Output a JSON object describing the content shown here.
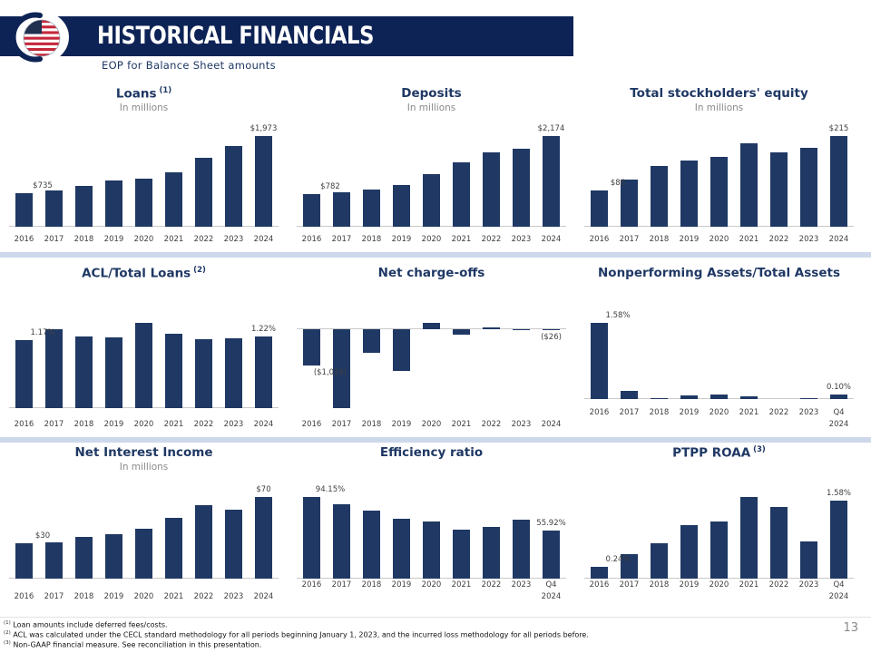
{
  "header": {
    "title": "HISTORICAL FINANCIALS",
    "subtitle": "EOP for Balance Sheet amounts",
    "logo_icon": "us-flag-globe-logo"
  },
  "page_number": "13",
  "footnotes": [
    {
      "sup": "(1)",
      "text": "Loan amounts include deferred fees/costs."
    },
    {
      "sup": "(2)",
      "text": "ACL was calculated under the CECL standard methodology for all periods beginning January 1, 2023, and the incurred loss methodology for all periods before."
    },
    {
      "sup": "(3)",
      "text": "Non-GAAP financial measure. See reconciliation in this presentation."
    }
  ],
  "colors": {
    "band_navy": "#0E2355",
    "bar_navy": "#1F3864",
    "title_navy": "#1F3864",
    "separator_blue": "#CDD8EB",
    "subtitle_gray": "#8a8a8a",
    "label_gray": "#3f3f3f"
  },
  "chart_data": [
    {
      "type": "bar",
      "title": "Loans",
      "sup": "(1)",
      "subtitle": "In millions",
      "categories": [
        "2016",
        "2017",
        "2018",
        "2019",
        "2020",
        "2021",
        "2022",
        "2023",
        "2024"
      ],
      "values": [
        735,
        780,
        890,
        1000,
        1050,
        1175,
        1500,
        1760,
        1973
      ],
      "ylim": [
        0,
        2150
      ],
      "grid": false,
      "labels": [
        {
          "index": 0,
          "text": "$735",
          "pos": "above"
        },
        {
          "index": 8,
          "text": "$1,973",
          "pos": "above"
        }
      ]
    },
    {
      "type": "bar",
      "title": "Deposits",
      "sup": "",
      "subtitle": "In millions",
      "categories": [
        "2016",
        "2017",
        "2018",
        "2019",
        "2020",
        "2021",
        "2022",
        "2023",
        "2024"
      ],
      "values": [
        782,
        830,
        900,
        1000,
        1260,
        1545,
        1775,
        1880,
        2174
      ],
      "ylim": [
        0,
        2350
      ],
      "grid": false,
      "labels": [
        {
          "index": 0,
          "text": "$782",
          "pos": "above"
        },
        {
          "index": 8,
          "text": "$2,174",
          "pos": "above"
        }
      ]
    },
    {
      "type": "bar",
      "title": "Total stockholders' equity",
      "sup": "",
      "subtitle": "In millions",
      "categories": [
        "2016",
        "2017",
        "2018",
        "2019",
        "2020",
        "2021",
        "2022",
        "2023",
        "2024"
      ],
      "values": [
        86,
        112,
        143,
        156,
        166,
        197,
        177,
        186,
        215
      ],
      "ylim": [
        0,
        235
      ],
      "grid": false,
      "labels": [
        {
          "index": 0,
          "text": "$86",
          "pos": "above"
        },
        {
          "index": 8,
          "text": "$215",
          "pos": "above"
        }
      ]
    },
    {
      "type": "bar",
      "title": "ACL/Total Loans",
      "sup": "(2)",
      "subtitle": "",
      "categories": [
        "2016",
        "2017",
        "2018",
        "2019",
        "2020",
        "2021",
        "2022",
        "2023",
        "2024"
      ],
      "values": [
        1.17,
        1.35,
        1.23,
        1.21,
        1.46,
        1.28,
        1.18,
        1.19,
        1.22
      ],
      "ylim": [
        0,
        1.6
      ],
      "grid": false,
      "labels": [
        {
          "index": 0,
          "text": "1.17%",
          "pos": "above"
        },
        {
          "index": 8,
          "text": "1.22%",
          "pos": "above"
        }
      ]
    },
    {
      "type": "bar",
      "title": "Net charge-offs",
      "sup": "",
      "subtitle": "",
      "categories": [
        "2016",
        "2017",
        "2018",
        "2019",
        "2020",
        "2021",
        "2022",
        "2023",
        "2024"
      ],
      "values": [
        -1019,
        -2250,
        -660,
        -1190,
        190,
        -155,
        65,
        -10,
        -26
      ],
      "ylim": [
        -2450,
        250
      ],
      "grid": false,
      "labels": [
        {
          "index": 0,
          "text": "($1,019)",
          "pos": "below"
        },
        {
          "index": 8,
          "text": "($26)",
          "pos": "below"
        }
      ]
    },
    {
      "type": "bar",
      "title": "Nonperforming Assets/Total Assets",
      "sup": "",
      "subtitle": "",
      "categories": [
        "2016",
        "2017",
        "2018",
        "2019",
        "2020",
        "2021",
        "2022",
        "2023",
        "Q4\n2024"
      ],
      "values": [
        1.58,
        0.17,
        0.02,
        0.08,
        0.1,
        0.06,
        0.0,
        0.02,
        0.1
      ],
      "ylim": [
        0,
        1.75
      ],
      "grid": false,
      "labels": [
        {
          "index": 0,
          "text": "1.58%",
          "pos": "above"
        },
        {
          "index": 8,
          "text": "0.10%",
          "pos": "above"
        }
      ]
    },
    {
      "type": "bar",
      "title": "Net Interest Income",
      "sup": "",
      "subtitle": "In millions",
      "categories": [
        "2016",
        "2017",
        "2018",
        "2019",
        "2020",
        "2021",
        "2022",
        "2023",
        "2024"
      ],
      "values": [
        30,
        31,
        36,
        38,
        43,
        52,
        63,
        59,
        70
      ],
      "ylim": [
        0,
        77
      ],
      "grid": false,
      "labels": [
        {
          "index": 0,
          "text": "$30",
          "pos": "above"
        },
        {
          "index": 8,
          "text": "$70",
          "pos": "above"
        }
      ]
    },
    {
      "type": "bar",
      "title": "Efficiency ratio",
      "sup": "",
      "subtitle": "",
      "categories": [
        "2016",
        "2017",
        "2018",
        "2019",
        "2020",
        "2021",
        "2022",
        "2023",
        "Q4\n2024"
      ],
      "values": [
        94.15,
        85.6,
        78.7,
        68.8,
        66.2,
        56.6,
        59.3,
        68.1,
        55.92
      ],
      "ylim": [
        0,
        103
      ],
      "grid": false,
      "labels": [
        {
          "index": 0,
          "text": "94.15%",
          "pos": "above"
        },
        {
          "index": 8,
          "text": "55.92%",
          "pos": "above"
        }
      ]
    },
    {
      "type": "bar",
      "title": "PTPP ROAA",
      "sup": "(3)",
      "subtitle": "",
      "categories": [
        "2016",
        "2017",
        "2018",
        "2019",
        "2020",
        "2021",
        "2022",
        "2023",
        "Q4\n2024"
      ],
      "values": [
        0.24,
        0.49,
        0.72,
        1.08,
        1.15,
        1.65,
        1.45,
        0.75,
        1.58
      ],
      "ylim": [
        0,
        1.8
      ],
      "grid": false,
      "labels": [
        {
          "index": 0,
          "text": "0.24%",
          "pos": "above"
        },
        {
          "index": 8,
          "text": "1.58%",
          "pos": "above"
        }
      ]
    }
  ]
}
